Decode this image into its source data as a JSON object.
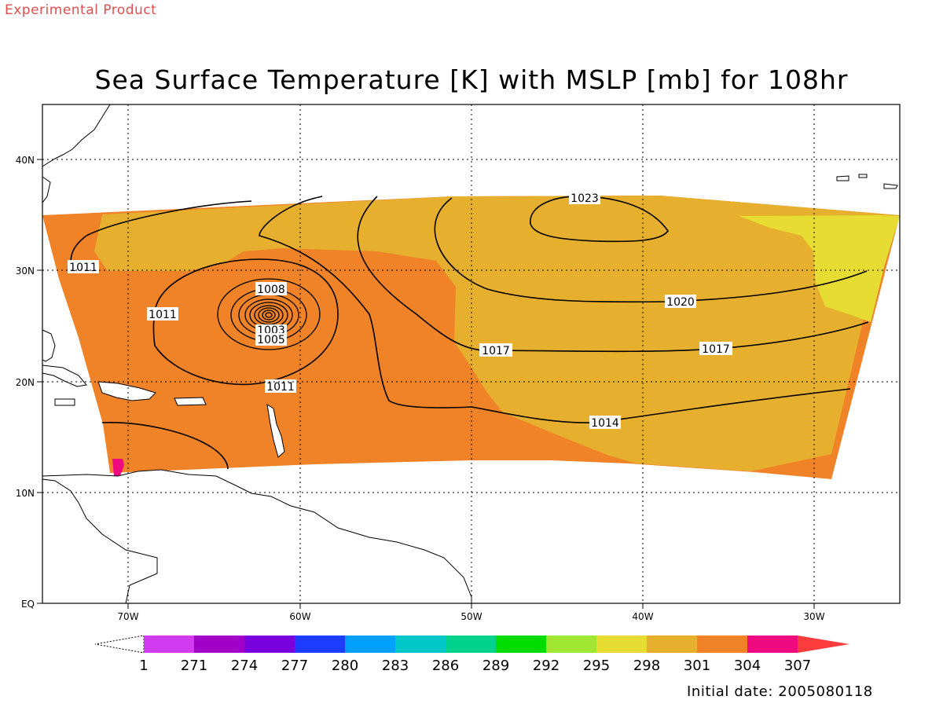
{
  "header": {
    "product_label": "Experimental Product",
    "title": "Sea Surface Temperature [K] with MSLP [mb] for 108hr",
    "initial_date": "Initial date: 2005080118"
  },
  "map": {
    "longitude_ticks": [
      "70W",
      "60W",
      "50W",
      "40W",
      "30W"
    ],
    "latitude_ticks": [
      "40N",
      "30N",
      "20N",
      "10N",
      "EQ"
    ],
    "grid": "dotted",
    "mslp_contour_labels": [
      "1023",
      "1011",
      "1008",
      "1011",
      "1005",
      "1003",
      "1020",
      "1017",
      "1017",
      "1011",
      "1014"
    ]
  },
  "colorbar": {
    "tick_labels": [
      "1",
      "271",
      "274",
      "277",
      "280",
      "283",
      "286",
      "289",
      "292",
      "295",
      "298",
      "301",
      "304",
      "307"
    ],
    "colors": [
      "#d23cf0",
      "#a000c8",
      "#7800dc",
      "#1e3cff",
      "#00a0ff",
      "#00c8c8",
      "#00d28c",
      "#00dc00",
      "#a0e632",
      "#e6dc32",
      "#e6af2d",
      "#f08228",
      "#f00a82",
      "#fa3c3c"
    ]
  }
}
